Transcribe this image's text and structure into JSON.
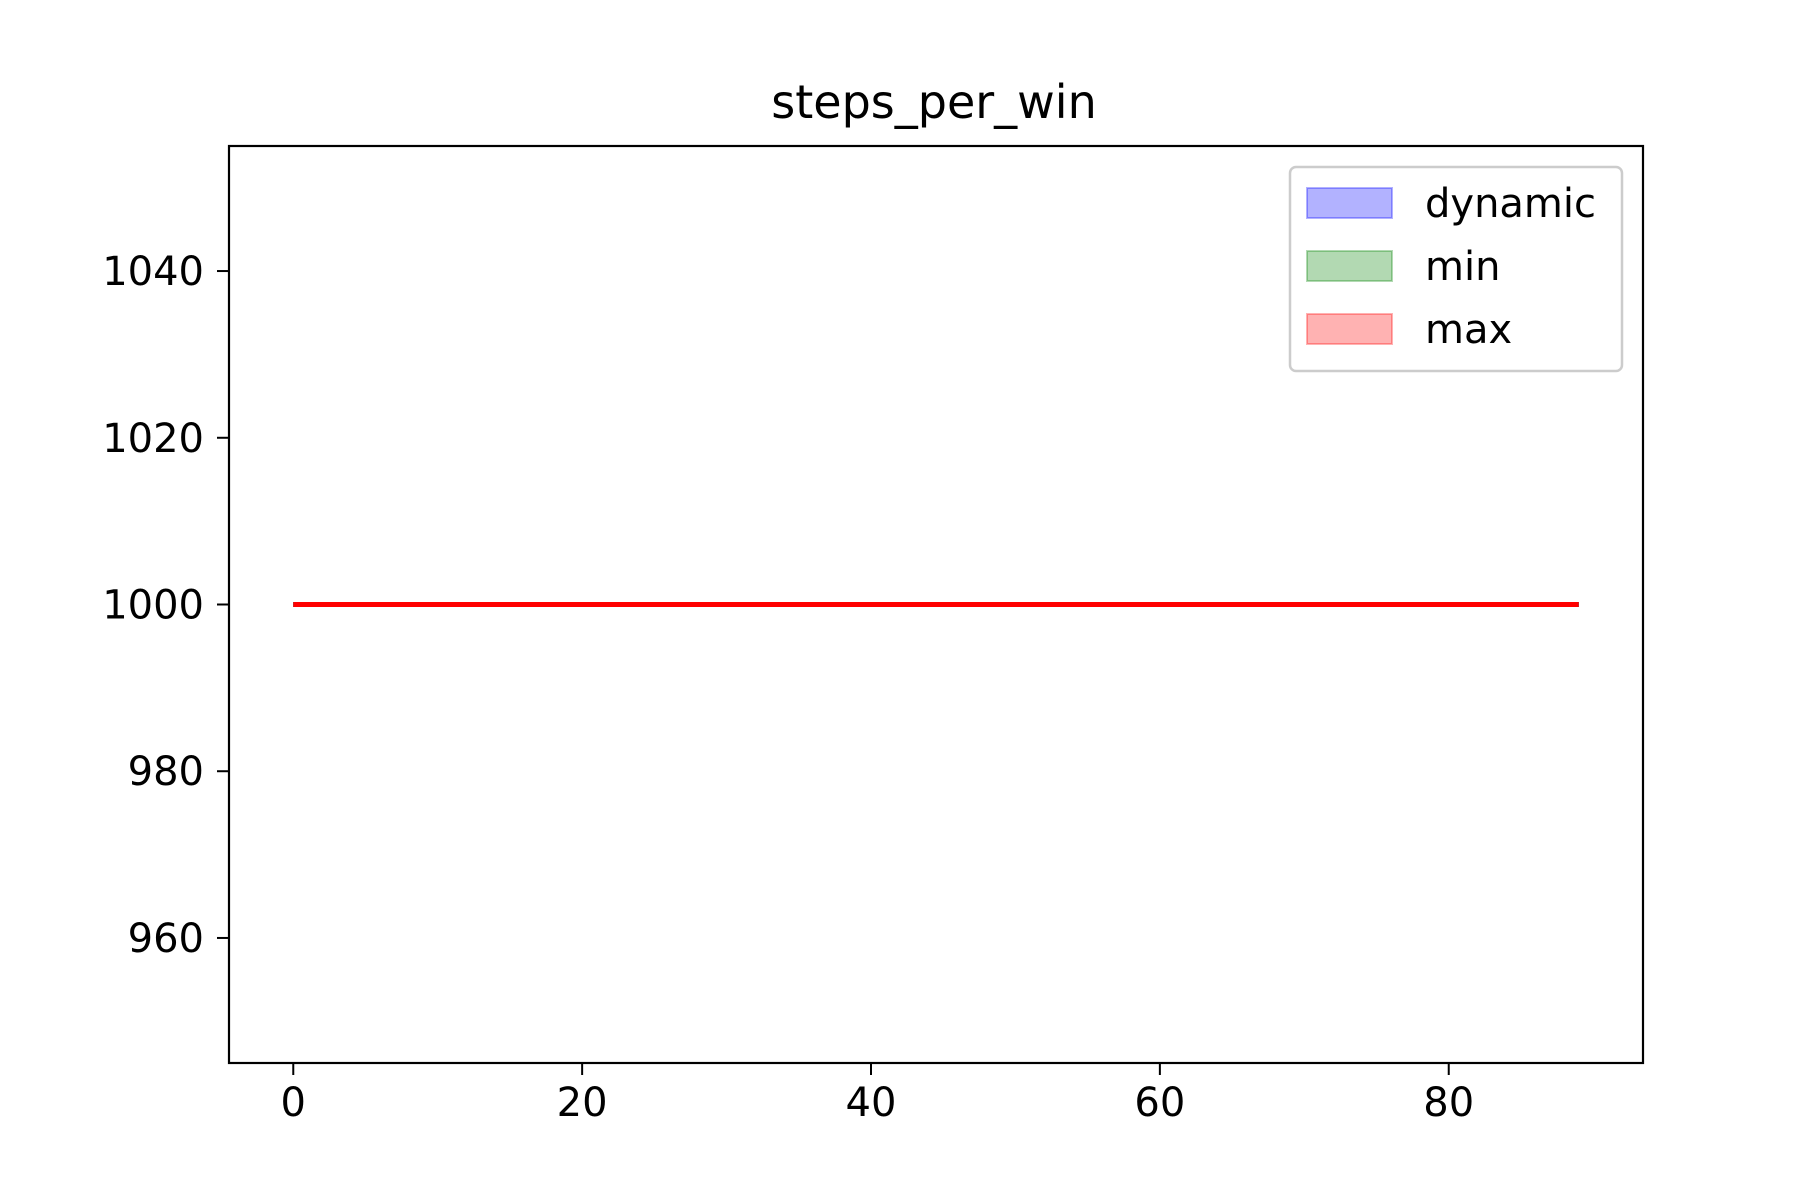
{
  "chart_data": {
    "type": "line",
    "title": "steps_per_win",
    "xlabel": "",
    "ylabel": "",
    "xlim": [
      -4.45,
      93.45
    ],
    "ylim": [
      945,
      1055
    ],
    "x_ticks": [
      0,
      20,
      40,
      60,
      80
    ],
    "y_ticks": [
      960,
      980,
      1000,
      1020,
      1040
    ],
    "grid": false,
    "legend_position": "upper right",
    "legend": [
      {
        "label": "dynamic",
        "color": "#0000ff"
      },
      {
        "label": "min",
        "color": "#008000"
      },
      {
        "label": "max",
        "color": "#ff0000"
      }
    ],
    "series": [
      {
        "name": "dynamic",
        "color": "#0000ff",
        "x_range": [
          0,
          89
        ],
        "y_constant": 1000
      },
      {
        "name": "min",
        "color": "#008000",
        "x_range": [
          0,
          89
        ],
        "y_constant": 1000
      },
      {
        "name": "max",
        "color": "#ff0000",
        "x_range": [
          0,
          89
        ],
        "y_constant": 1000
      }
    ]
  }
}
